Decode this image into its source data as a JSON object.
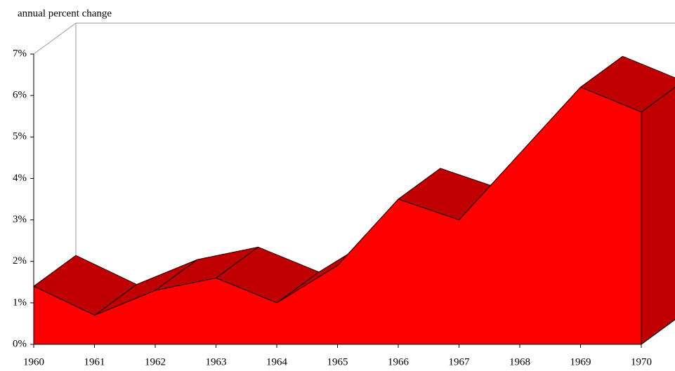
{
  "chart_data": {
    "type": "area3d",
    "title": "annual percent change",
    "categories": [
      "1960",
      "1961",
      "1962",
      "1963",
      "1964",
      "1965",
      "1966",
      "1967",
      "1968",
      "1969",
      "1970"
    ],
    "values": [
      1.4,
      0.7,
      1.3,
      1.6,
      1.0,
      1.9,
      3.5,
      3.0,
      4.6,
      6.2,
      5.6
    ],
    "color": "#ff0000",
    "ylim": [
      0,
      7
    ],
    "yticks": [
      {
        "value": 0,
        "label": "0%"
      },
      {
        "value": 1,
        "label": "1%"
      },
      {
        "value": 2,
        "label": "2%"
      },
      {
        "value": 3,
        "label": "3%"
      },
      {
        "value": 4,
        "label": "4%"
      },
      {
        "value": 5,
        "label": "5%"
      },
      {
        "value": 6,
        "label": "6%"
      },
      {
        "value": 7,
        "label": "7%"
      }
    ]
  }
}
